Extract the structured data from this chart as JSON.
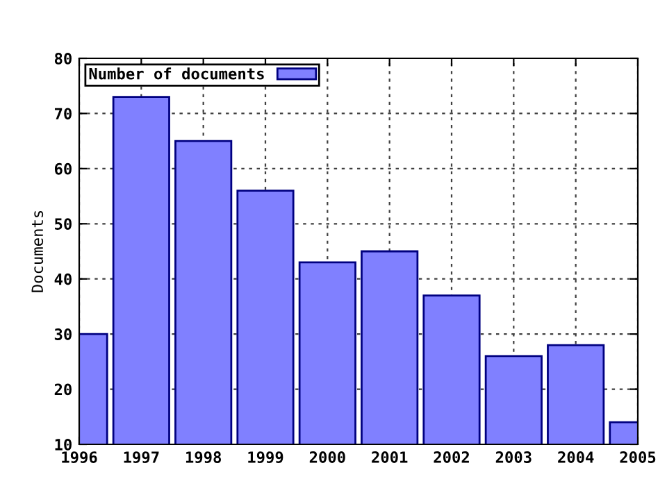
{
  "chart_data": {
    "type": "bar",
    "ylabel": "Documents",
    "x": [
      1996,
      1997,
      1998,
      1999,
      2000,
      2001,
      2002,
      2003,
      2004,
      2005
    ],
    "series": [
      {
        "name": "Number of documents",
        "color": "#8080ff",
        "values": [
          30,
          73,
          65,
          56,
          43,
          45,
          37,
          26,
          28,
          14
        ]
      }
    ],
    "xlim": [
      1996,
      2005
    ],
    "xticks": [
      1996,
      1997,
      1998,
      1999,
      2000,
      2001,
      2002,
      2003,
      2004,
      2005
    ],
    "ylim": [
      10,
      80
    ],
    "yticks": [
      10,
      20,
      30,
      40,
      50,
      60,
      70,
      80
    ],
    "grid": true,
    "legend": "top left"
  }
}
